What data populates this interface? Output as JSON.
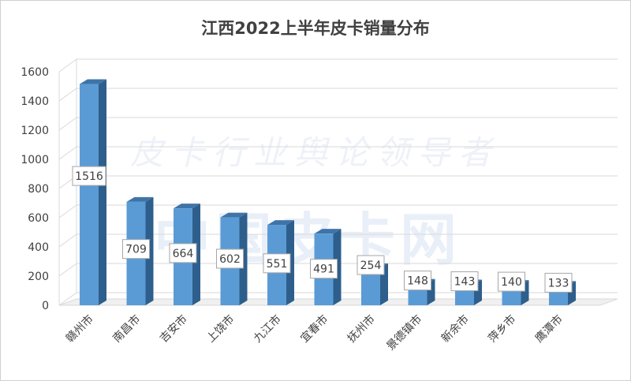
{
  "chart_data": {
    "type": "bar",
    "title": "江西2022上半年皮卡销量分布",
    "categories": [
      "赣州市",
      "南昌市",
      "吉安市",
      "上饶市",
      "九江市",
      "宜春市",
      "抚州市",
      "景德镇市",
      "新余市",
      "萍乡市",
      "鹰潭市"
    ],
    "values": [
      1516,
      709,
      664,
      602,
      551,
      491,
      254,
      148,
      143,
      140,
      133
    ],
    "ylim": [
      0,
      1600
    ],
    "yticks": [
      "0",
      "200",
      "400",
      "600",
      "800",
      "1000",
      "1200",
      "1400",
      "1600"
    ],
    "grid": true,
    "style": "3d-column",
    "bar_color": "#5b9bd5",
    "data_labels": true
  },
  "watermark": {
    "line1": "皮卡行业舆论领导者",
    "line2": "中国皮卡网"
  }
}
